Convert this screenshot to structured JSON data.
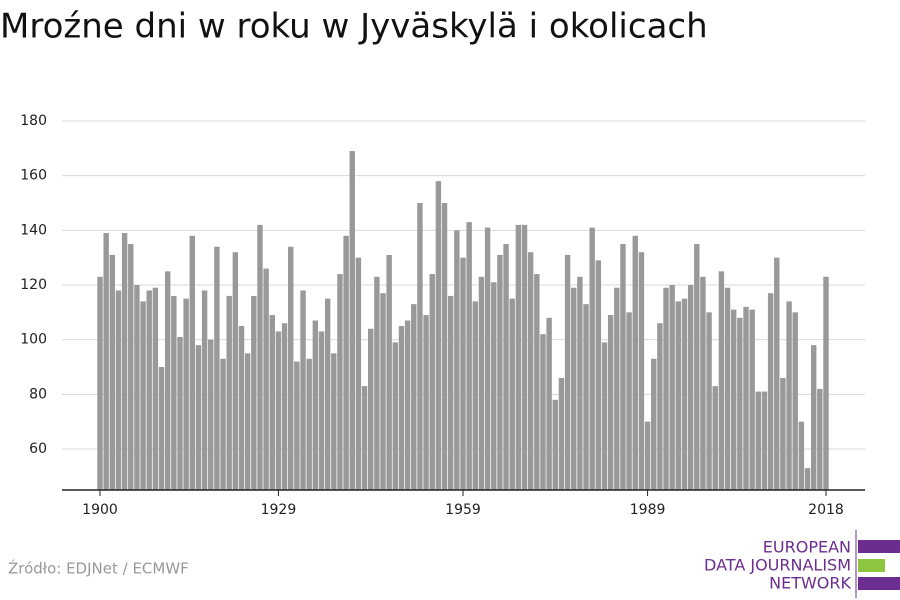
{
  "chart_data": {
    "type": "bar",
    "title": "Mroźne dni w roku w Jyväskylä i okolicach",
    "x": [
      1900,
      1901,
      1902,
      1903,
      1904,
      1905,
      1906,
      1907,
      1908,
      1909,
      1910,
      1911,
      1912,
      1913,
      1914,
      1915,
      1916,
      1917,
      1918,
      1919,
      1920,
      1921,
      1922,
      1923,
      1924,
      1925,
      1926,
      1927,
      1928,
      1929,
      1930,
      1931,
      1932,
      1933,
      1934,
      1935,
      1936,
      1937,
      1938,
      1939,
      1940,
      1941,
      1942,
      1943,
      1944,
      1945,
      1946,
      1947,
      1948,
      1949,
      1950,
      1951,
      1952,
      1953,
      1954,
      1955,
      1956,
      1957,
      1958,
      1959,
      1960,
      1961,
      1962,
      1963,
      1964,
      1965,
      1966,
      1967,
      1968,
      1969,
      1970,
      1971,
      1972,
      1973,
      1974,
      1975,
      1976,
      1977,
      1978,
      1979,
      1980,
      1981,
      1982,
      1983,
      1984,
      1985,
      1986,
      1987,
      1988,
      1989,
      1990,
      1991,
      1992,
      1993,
      1994,
      1995,
      1996,
      1997,
      1998,
      1999,
      2000,
      2001,
      2002,
      2003,
      2004,
      2005,
      2006,
      2007,
      2008,
      2009,
      2010,
      2011,
      2012,
      2013,
      2014,
      2015,
      2016,
      2017,
      2018
    ],
    "values": [
      123,
      139,
      131,
      118,
      139,
      135,
      120,
      114,
      118,
      119,
      90,
      125,
      116,
      101,
      115,
      138,
      98,
      118,
      100,
      134,
      93,
      116,
      132,
      105,
      95,
      116,
      142,
      126,
      109,
      103,
      106,
      134,
      92,
      118,
      93,
      107,
      103,
      115,
      95,
      124,
      138,
      169,
      130,
      83,
      104,
      123,
      117,
      131,
      99,
      105,
      107,
      113,
      150,
      109,
      124,
      158,
      150,
      116,
      140,
      130,
      143,
      114,
      123,
      141,
      121,
      131,
      135,
      115,
      142,
      142,
      132,
      124,
      102,
      108,
      78,
      86,
      131,
      119,
      123,
      113,
      141,
      129,
      99,
      109,
      119,
      135,
      110,
      138,
      132,
      70,
      93,
      106,
      119,
      120,
      114,
      115,
      120,
      135,
      123,
      110,
      83,
      125,
      119,
      111,
      108,
      112,
      111,
      81,
      81,
      117,
      130,
      86,
      114,
      110,
      70,
      53,
      98,
      82,
      123
    ],
    "color": "#999999",
    "xlim": [
      1898,
      2020
    ],
    "xticks": [
      1900,
      1929,
      1959,
      1989,
      2018
    ],
    "ylim": [
      45,
      180
    ],
    "yticks": [
      60,
      80,
      100,
      120,
      140,
      160,
      180
    ],
    "grid": true,
    "source": "Źródło: EDJNet / ECMWF",
    "logo": [
      "EUROPEAN",
      "DATA JOURNALISM",
      "NETWORK"
    ]
  }
}
